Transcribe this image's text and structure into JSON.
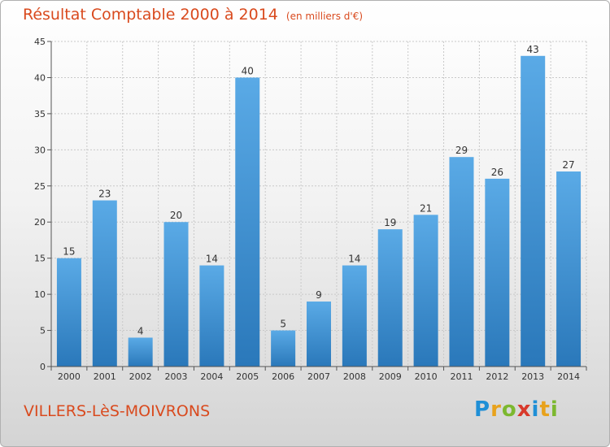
{
  "header": {
    "title": "Résultat Comptable 2000 à 2014",
    "subtitle": "(en milliers d'€)"
  },
  "footer": {
    "commune": "VILLERS-LèS-MOIVRONS"
  },
  "logo": {
    "text": "Proxiti",
    "letters": [
      {
        "ch": "P",
        "color": "#1f8fd6"
      },
      {
        "ch": "r",
        "color": "#e8a21c"
      },
      {
        "ch": "o",
        "color": "#7cb82f"
      },
      {
        "ch": "x",
        "color": "#d8392b"
      },
      {
        "ch": "i",
        "color": "#1f8fd6"
      },
      {
        "ch": "t",
        "color": "#e8a21c"
      },
      {
        "ch": "i",
        "color": "#7cb82f"
      }
    ]
  },
  "colors": {
    "title": "#d94a1e",
    "bar_top": "#5aaae6",
    "bar_bottom": "#2a78ba",
    "axis": "#555555",
    "grid": "#c9c9c9"
  },
  "chart_data": {
    "type": "bar",
    "title": "Résultat Comptable 2000 à 2014",
    "categories": [
      "2000",
      "2001",
      "2002",
      "2003",
      "2004",
      "2005",
      "2006",
      "2007",
      "2008",
      "2009",
      "2010",
      "2011",
      "2012",
      "2013",
      "2014"
    ],
    "values": [
      15,
      23,
      4,
      20,
      14,
      40,
      5,
      9,
      14,
      19,
      21,
      29,
      26,
      43,
      27
    ],
    "ylim": [
      0,
      45
    ],
    "yticks": [
      0,
      5,
      10,
      15,
      20,
      25,
      30,
      35,
      40,
      45
    ],
    "grid": true,
    "data_labels": true
  }
}
